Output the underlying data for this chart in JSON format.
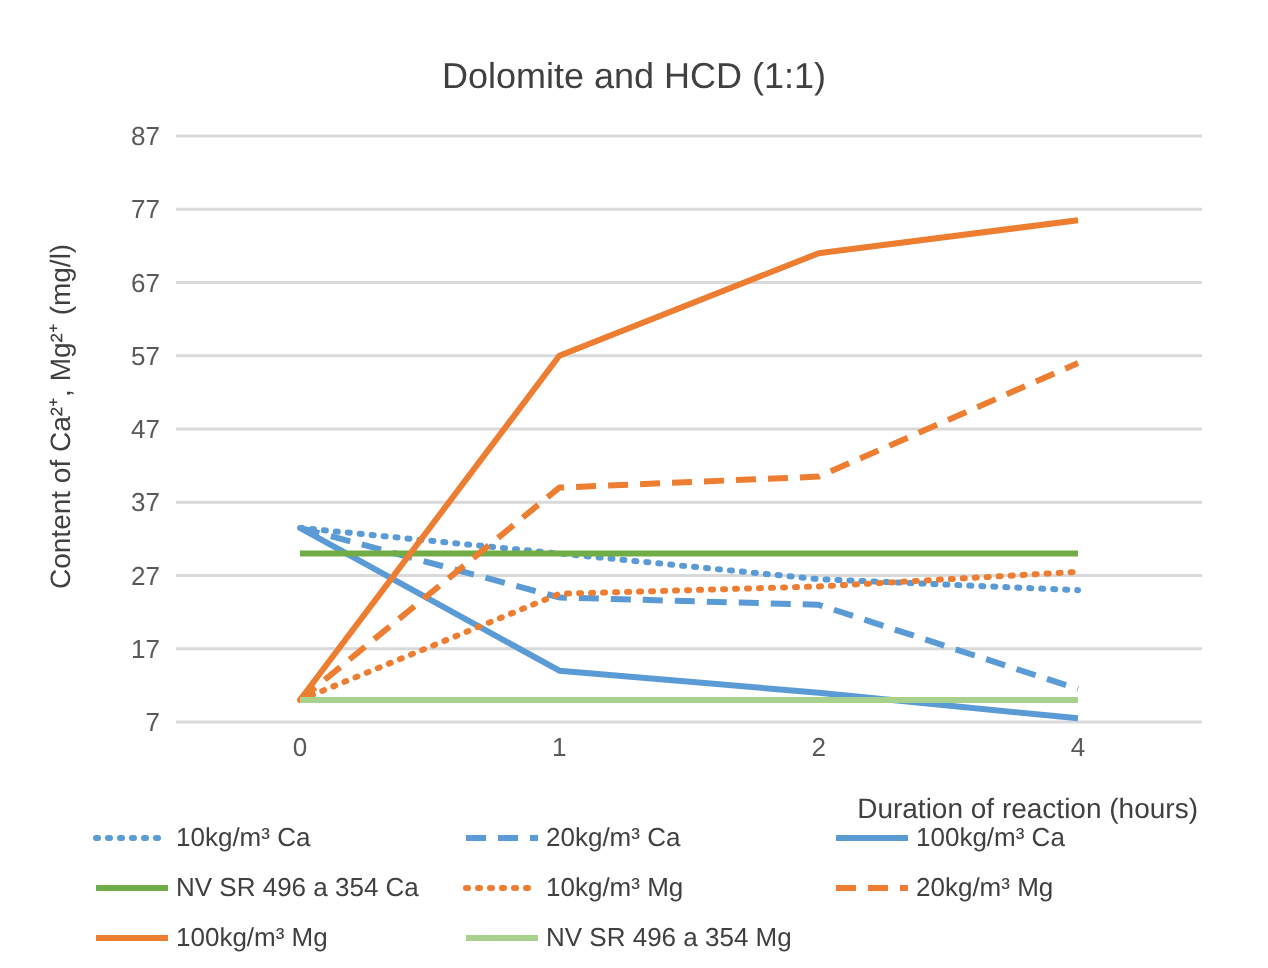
{
  "chart_data": {
    "type": "line",
    "title": "Dolomite and HCD (1:1)",
    "xlabel": "Duration of reaction (hours)",
    "ylabel": "Content of Ca²⁺, Mg²⁺ (mg/l)",
    "categories": [
      "0",
      "1",
      "2",
      "4"
    ],
    "ylim": [
      7,
      87
    ],
    "yticks": [
      7,
      17,
      27,
      37,
      47,
      57,
      67,
      77,
      87
    ],
    "grid": "y",
    "legend": "bottom",
    "marker": "none",
    "series": [
      {
        "name": "10kg/m³ Ca",
        "color": "#5b9bd5",
        "line_style": "dotted",
        "values": [
          33.5,
          30,
          26.5,
          25
        ]
      },
      {
        "name": "20kg/m³ Ca",
        "color": "#5b9bd5",
        "line_style": "dashed",
        "values": [
          33.5,
          24,
          23,
          11.5
        ]
      },
      {
        "name": "100kg/m³ Ca",
        "color": "#5b9bd5",
        "line_style": "solid",
        "values": [
          33.5,
          14,
          11,
          7.5
        ]
      },
      {
        "name": "NV SR 496 a 354 Ca",
        "color": "#70ad47",
        "line_style": "solid",
        "values": [
          30,
          30,
          30,
          30
        ]
      },
      {
        "name": "10kg/m³ Mg",
        "color": "#ed7d31",
        "line_style": "dotted",
        "values": [
          10,
          24.5,
          25.5,
          27.5
        ]
      },
      {
        "name": "20kg/m³ Mg",
        "color": "#ed7d31",
        "line_style": "dashed",
        "values": [
          10,
          39,
          40.5,
          56
        ]
      },
      {
        "name": "100kg/m³ Mg",
        "color": "#ed7d31",
        "line_style": "solid",
        "values": [
          10,
          57,
          71,
          75.5
        ]
      },
      {
        "name": "NV SR 496 a 354 Mg",
        "color": "#a9d18e",
        "line_style": "solid",
        "values": [
          10,
          10,
          10,
          10
        ]
      }
    ]
  }
}
